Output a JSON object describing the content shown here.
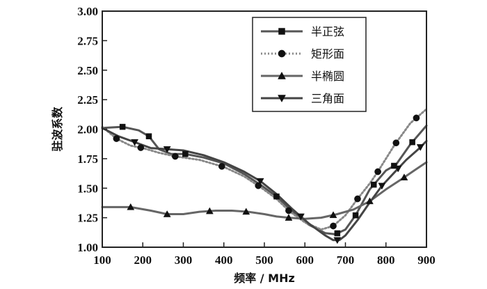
{
  "chart_data": {
    "type": "line",
    "xlabel": "频率 / MHz",
    "ylabel": "驻波系数",
    "xlim": [
      100,
      900
    ],
    "ylim": [
      1.0,
      3.0
    ],
    "x_ticks": [
      "100",
      "200",
      "300",
      "400",
      "500",
      "600",
      "700",
      "800",
      "900"
    ],
    "y_ticks": [
      "1.00",
      "1.25",
      "1.50",
      "1.75",
      "2.00",
      "2.25",
      "2.50",
      "2.75",
      "3.00"
    ],
    "legend_position": "top-right",
    "series": [
      {
        "name": "半正弦",
        "marker": "square",
        "color": "#555555",
        "points": [
          [
            100,
            2.01
          ],
          [
            150,
            2.02
          ],
          [
            190,
            1.99
          ],
          [
            215,
            1.94
          ],
          [
            240,
            1.83
          ],
          [
            270,
            1.79
          ],
          [
            305,
            1.79
          ],
          [
            350,
            1.76
          ],
          [
            400,
            1.71
          ],
          [
            450,
            1.62
          ],
          [
            490,
            1.53
          ],
          [
            530,
            1.43
          ],
          [
            570,
            1.3
          ],
          [
            610,
            1.19
          ],
          [
            650,
            1.12
          ],
          [
            675,
            1.11
          ],
          [
            700,
            1.15
          ],
          [
            725,
            1.27
          ],
          [
            760,
            1.49
          ],
          [
            800,
            1.65
          ],
          [
            825,
            1.7
          ],
          [
            860,
            1.87
          ],
          [
            900,
            2.03
          ]
        ],
        "markers_x": [
          150,
          215,
          305,
          530,
          680,
          725,
          770,
          820,
          865
        ]
      },
      {
        "name": "矩形面",
        "marker": "circle",
        "color": "#888888",
        "points": [
          [
            100,
            2.02
          ],
          [
            135,
            1.92
          ],
          [
            170,
            1.86
          ],
          [
            200,
            1.84
          ],
          [
            240,
            1.8
          ],
          [
            280,
            1.77
          ],
          [
            340,
            1.74
          ],
          [
            400,
            1.68
          ],
          [
            450,
            1.6
          ],
          [
            490,
            1.51
          ],
          [
            530,
            1.41
          ],
          [
            560,
            1.31
          ],
          [
            600,
            1.21
          ],
          [
            640,
            1.15
          ],
          [
            670,
            1.18
          ],
          [
            700,
            1.27
          ],
          [
            730,
            1.41
          ],
          [
            760,
            1.54
          ],
          [
            780,
            1.64
          ],
          [
            820,
            1.86
          ],
          [
            860,
            2.05
          ],
          [
            900,
            2.17
          ]
        ],
        "markers_x": [
          135,
          195,
          280,
          395,
          485,
          560,
          670,
          730,
          780,
          825,
          875
        ]
      },
      {
        "name": "半椭圆",
        "marker": "triangle-up",
        "color": "#666666",
        "points": [
          [
            100,
            1.34
          ],
          [
            140,
            1.34
          ],
          [
            170,
            1.34
          ],
          [
            220,
            1.31
          ],
          [
            260,
            1.28
          ],
          [
            300,
            1.28
          ],
          [
            340,
            1.3
          ],
          [
            380,
            1.31
          ],
          [
            420,
            1.31
          ],
          [
            460,
            1.3
          ],
          [
            500,
            1.28
          ],
          [
            530,
            1.26
          ],
          [
            560,
            1.25
          ],
          [
            600,
            1.24
          ],
          [
            640,
            1.25
          ],
          [
            680,
            1.28
          ],
          [
            720,
            1.32
          ],
          [
            760,
            1.39
          ],
          [
            800,
            1.49
          ],
          [
            840,
            1.58
          ],
          [
            870,
            1.65
          ],
          [
            900,
            1.72
          ]
        ],
        "markers_x": [
          170,
          260,
          365,
          455,
          560,
          670,
          760,
          845
        ]
      },
      {
        "name": "三角面",
        "marker": "triangle-down",
        "color": "#444444",
        "points": [
          [
            100,
            2.01
          ],
          [
            140,
            1.94
          ],
          [
            180,
            1.89
          ],
          [
            220,
            1.84
          ],
          [
            260,
            1.83
          ],
          [
            300,
            1.82
          ],
          [
            350,
            1.78
          ],
          [
            400,
            1.72
          ],
          [
            450,
            1.64
          ],
          [
            490,
            1.56
          ],
          [
            530,
            1.45
          ],
          [
            570,
            1.32
          ],
          [
            610,
            1.2
          ],
          [
            650,
            1.1
          ],
          [
            670,
            1.06
          ],
          [
            685,
            1.06
          ],
          [
            700,
            1.1
          ],
          [
            730,
            1.23
          ],
          [
            760,
            1.38
          ],
          [
            790,
            1.52
          ],
          [
            820,
            1.63
          ],
          [
            850,
            1.74
          ],
          [
            880,
            1.83
          ],
          [
            900,
            1.9
          ]
        ],
        "markers_x": [
          180,
          260,
          490,
          590,
          680,
          790,
          830,
          885
        ]
      }
    ]
  }
}
